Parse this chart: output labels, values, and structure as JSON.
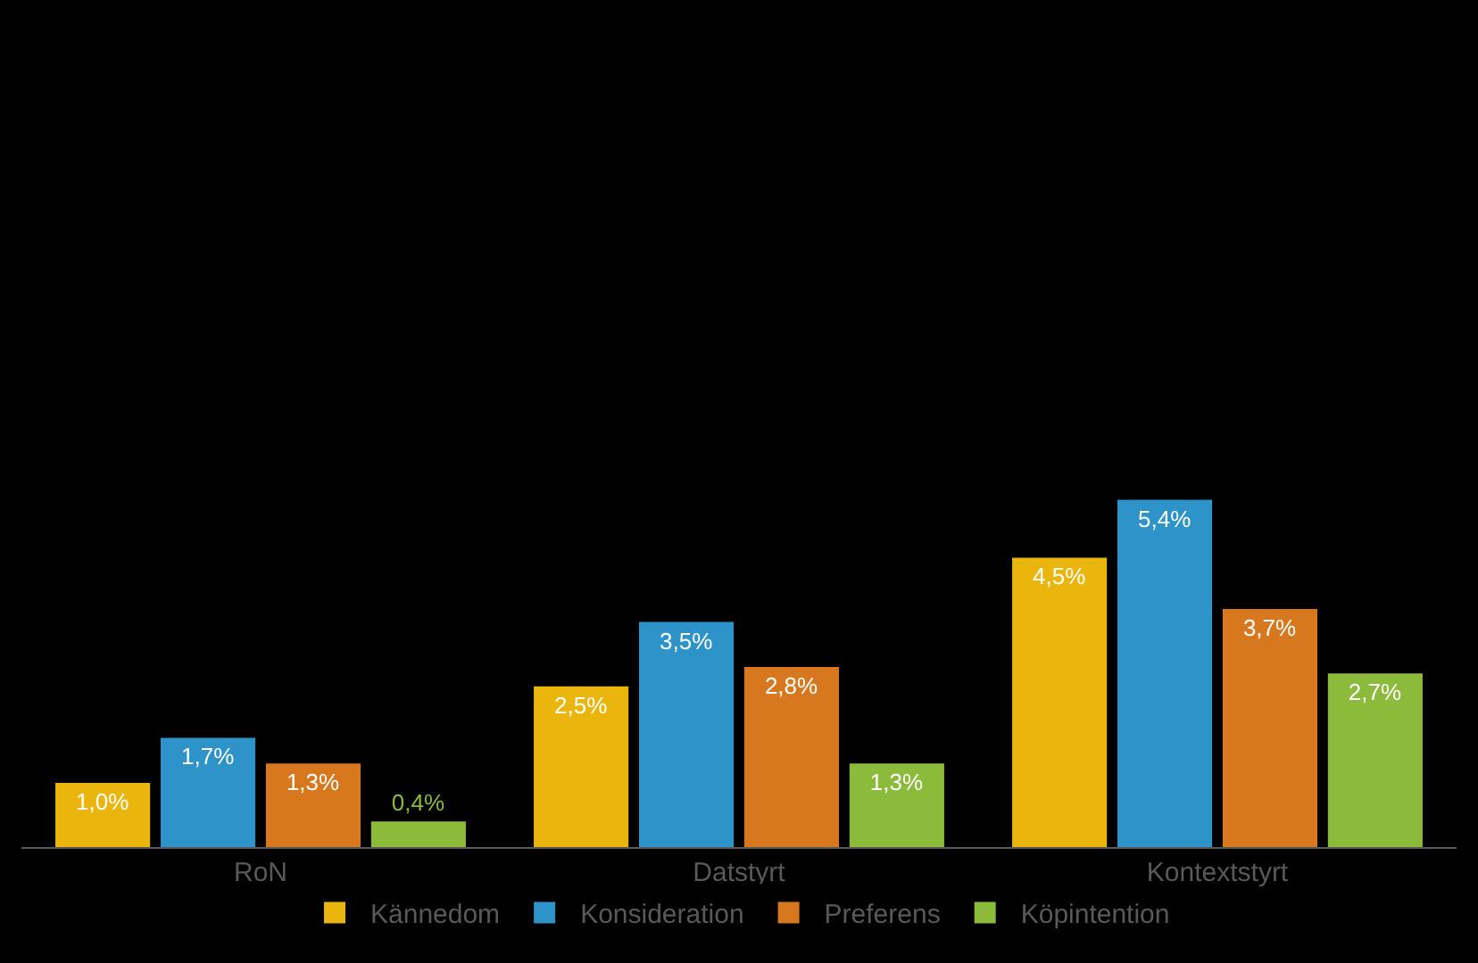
{
  "chart_data": {
    "type": "bar",
    "categories": [
      "RoN",
      "Datstyrt",
      "Kontextstyrt"
    ],
    "series": [
      {
        "name": "Kännedom",
        "color": "#eab60e",
        "values": [
          1.0,
          2.5,
          4.5
        ],
        "value_labels": [
          "1,0%",
          "2,5%",
          "4,5%"
        ]
      },
      {
        "name": "Konsideration",
        "color": "#2e93c8",
        "values": [
          1.7,
          3.5,
          5.4
        ],
        "value_labels": [
          "1,7%",
          "3,5%",
          "5,4%"
        ]
      },
      {
        "name": "Preferens",
        "color": "#d7781f",
        "values": [
          1.3,
          2.8,
          3.7
        ],
        "value_labels": [
          "1,3%",
          "2,8%",
          "3,7%"
        ]
      },
      {
        "name": "Köpintention",
        "color": "#8cbb3c",
        "values": [
          0.4,
          1.3,
          2.7
        ],
        "value_labels": [
          "0,4%",
          "1,3%",
          "2,7%"
        ]
      }
    ],
    "tick_labels": "x",
    "grid": false,
    "legend": "bottom"
  }
}
